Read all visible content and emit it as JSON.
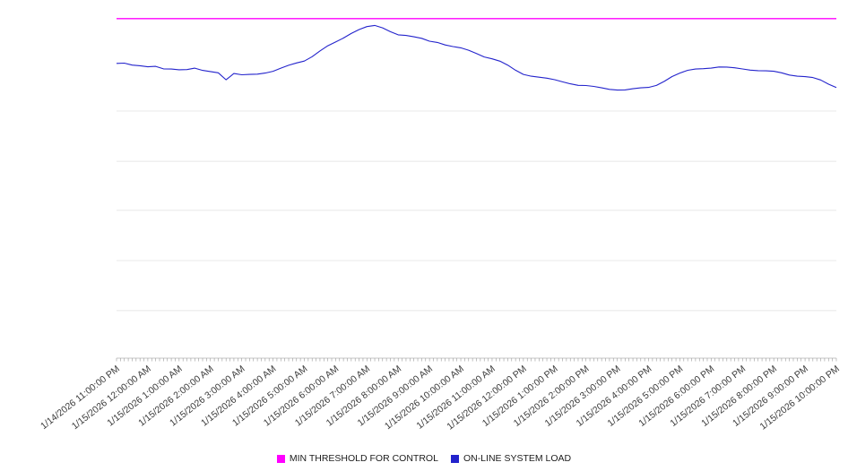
{
  "chart_data": {
    "type": "line",
    "title": "",
    "grid": "horizontal-light",
    "legend_position": "bottom-center",
    "x_axis": {
      "tick_rotation_deg": -38,
      "labels": [
        "1/14/2026 11:00:00 PM",
        "1/15/2026 12:00:00 AM",
        "1/15/2026 1:00:00 AM",
        "1/15/2026 2:00:00 AM",
        "1/15/2026 3:00:00 AM",
        "1/15/2026 4:00:00 AM",
        "1/15/2026 5:00:00 AM",
        "1/15/2026 6:00:00 AM",
        "1/15/2026 7:00:00 AM",
        "1/15/2026 8:00:00 AM",
        "1/15/2026 9:00:00 AM",
        "1/15/2026 10:00:00 AM",
        "1/15/2026 11:00:00 AM",
        "1/15/2026 12:00:00 PM",
        "1/15/2026 1:00:00 PM",
        "1/15/2026 2:00:00 PM",
        "1/15/2026 3:00:00 PM",
        "1/15/2026 4:00:00 PM",
        "1/15/2026 5:00:00 PM",
        "1/15/2026 6:00:00 PM",
        "1/15/2026 7:00:00 PM",
        "1/15/2026 8:00:00 PM",
        "1/15/2026 9:00:00 PM",
        "1/15/2026 10:00:00 PM"
      ]
    },
    "y_axis": {
      "labels_visible": false,
      "ylim": [
        0,
        100
      ]
    },
    "series": [
      {
        "name": "MIN THRESHOLD FOR CONTROL",
        "color": "#ff00ff",
        "type": "threshold-horizontal-line",
        "value": 98.5
      },
      {
        "name": "ON-LINE SYSTEM LOAD",
        "color": "#2323cc",
        "type": "line",
        "x_step_minutes": 15,
        "values": [
          85.5,
          85.8,
          85.2,
          84.8,
          84.3,
          84.5,
          84.0,
          84.1,
          83.8,
          83.6,
          83.9,
          83.4,
          83.3,
          83.0,
          80.8,
          82.4,
          82.0,
          82.3,
          82.6,
          82.9,
          83.2,
          83.9,
          84.8,
          85.7,
          86.4,
          87.6,
          89.0,
          90.4,
          91.6,
          93.0,
          94.4,
          95.4,
          96.0,
          96.3,
          95.8,
          94.9,
          94.0,
          93.6,
          93.0,
          92.6,
          92.0,
          91.8,
          91.0,
          90.3,
          89.8,
          89.2,
          88.5,
          87.6,
          86.9,
          86.0,
          84.8,
          83.5,
          82.5,
          82.0,
          81.5,
          81.0,
          80.6,
          80.2,
          79.8,
          79.3,
          79.0,
          78.6,
          78.3,
          78.1,
          78.0,
          77.9,
          78.0,
          78.2,
          78.5,
          79.3,
          80.5,
          81.7,
          82.5,
          83.3,
          83.9,
          84.2,
          84.3,
          84.4,
          84.2,
          84.1,
          84.0,
          83.8,
          83.5,
          83.2,
          83.0,
          82.7,
          82.3,
          82.0,
          81.7,
          81.2,
          80.5,
          79.5,
          78.5
        ]
      }
    ]
  }
}
